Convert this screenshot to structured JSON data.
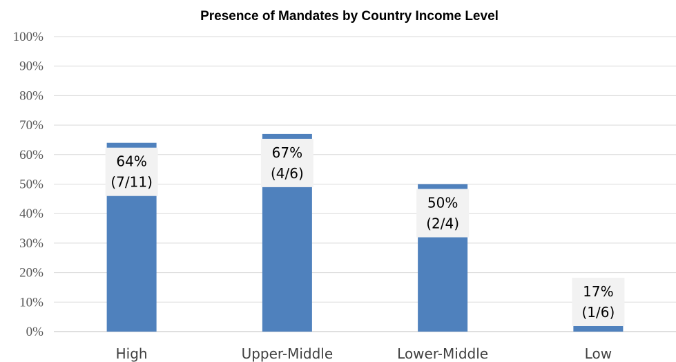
{
  "chart_data": {
    "type": "bar",
    "title": "Presence of Mandates by Country Income Level",
    "categories": [
      "High",
      "Upper-Middle",
      "Lower-Middle",
      "Low"
    ],
    "values": [
      64,
      67,
      50,
      17
    ],
    "data_labels": [
      [
        "64%",
        "(7/11)"
      ],
      [
        "67%",
        "(4/6)"
      ],
      [
        "50%",
        "(2/4)"
      ],
      [
        "17%",
        "(1/6)"
      ]
    ],
    "yticks": [
      "0%",
      "10%",
      "20%",
      "30%",
      "40%",
      "50%",
      "60%",
      "70%",
      "80%",
      "90%",
      "100%"
    ],
    "ylim": [
      0,
      100
    ],
    "grid": true,
    "legend": "none",
    "bar_color": "#4f81bd"
  }
}
